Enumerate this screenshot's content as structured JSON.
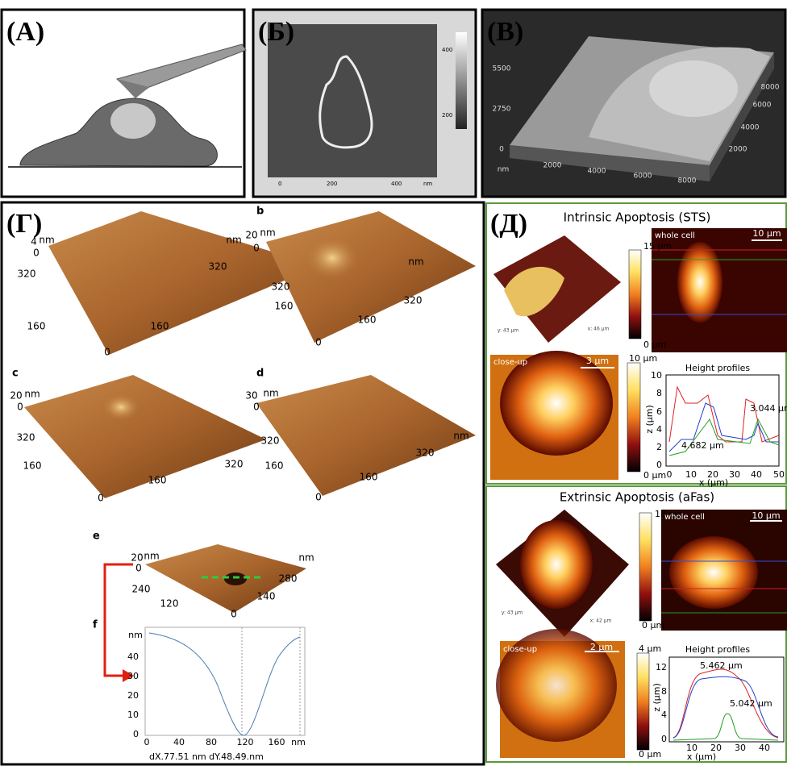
{
  "panel_a": {
    "label": "(A)"
  },
  "panel_b": {
    "label": "(Б)",
    "y_ticks": [
      "400",
      "200"
    ],
    "x_ticks": [
      "0",
      "200",
      "400"
    ],
    "unit": "nm"
  },
  "panel_v": {
    "label": "(В)",
    "z_ticks": [
      "5500",
      "2750",
      "0"
    ],
    "z_unit": "nm",
    "x_ticks": [
      "2000",
      "4000",
      "6000",
      "8000"
    ],
    "y_ticks": [
      "8000",
      "6000",
      "4000",
      "2000"
    ]
  },
  "panel_g": {
    "label": "(Г)",
    "a": {
      "labels": [
        "4",
        "nm",
        "0",
        "320",
        "160",
        "0",
        "nm",
        "320",
        "160"
      ]
    },
    "b": {
      "letter": "b",
      "labels": [
        "20",
        "nm",
        "0",
        "320",
        "160",
        "0",
        "nm",
        "320",
        "160"
      ]
    },
    "c": {
      "letter": "c",
      "labels": [
        "20",
        "nm",
        "0",
        "320",
        "160",
        "0",
        "320",
        "160"
      ]
    },
    "d": {
      "letter": "d",
      "labels": [
        "30",
        "nm",
        "0",
        "320",
        "160",
        "0",
        "nm",
        "320",
        "160"
      ]
    },
    "e": {
      "letter": "e",
      "labels": [
        "20",
        "nm",
        "0",
        "240",
        "120",
        "0",
        "nm",
        "280",
        "140"
      ]
    },
    "f": {
      "letter": "f",
      "y_unit": "nm",
      "y_ticks": [
        "40",
        "30",
        "20",
        "10",
        "0"
      ],
      "x_ticks": [
        "0",
        "40",
        "80",
        "120",
        "160"
      ],
      "x_unit": "nm",
      "readout": "dX.77.51 nm   dY.48.49.nm"
    }
  },
  "panel_d": {
    "label": "(Д)",
    "intrinsic": {
      "title": "Intrinsic Apoptosis (STS)",
      "view_labels": [
        "y: 43 µm",
        "x: 46 µm"
      ],
      "bar_max": "15 µm",
      "bar_min": "0 µm",
      "whole_cell": "whole cell",
      "whole_scale": "10 µm",
      "closeup": "close-up",
      "closeup_scale": "3 µm",
      "closeup_max": "10 µm",
      "closeup_min": "0 µm",
      "profiles_title": "Height profiles",
      "y_ticks": [
        "10",
        "8",
        "6",
        "4",
        "2",
        "0"
      ],
      "x_ticks": [
        "0",
        "10",
        "20",
        "30",
        "40",
        "50"
      ],
      "y_label": "z (µm)",
      "x_label": "x (µm)",
      "annotations": [
        "3.044 µm",
        "4.682 µm"
      ]
    },
    "extrinsic": {
      "title": "Extrinsic Apoptosis (aFas)",
      "view_labels": [
        "y: 43 µm",
        "x: 42 µm"
      ],
      "bar_max": "18 µm",
      "bar_min": "0 µm",
      "whole_cell": "whole cell",
      "whole_scale": "10 µm",
      "closeup": "close-up",
      "closeup_scale": "2 µm",
      "closeup_max": "4 µm",
      "closeup_min": "0 µm",
      "profiles_title": "Height profiles",
      "y_ticks": [
        "12",
        "8",
        "4",
        "0"
      ],
      "x_ticks": [
        "10",
        "20",
        "30",
        "40"
      ],
      "y_label": "z (µm)",
      "x_label": "x (µm)",
      "annotations": [
        "5.462 µm",
        "5.042 µm"
      ]
    }
  }
}
